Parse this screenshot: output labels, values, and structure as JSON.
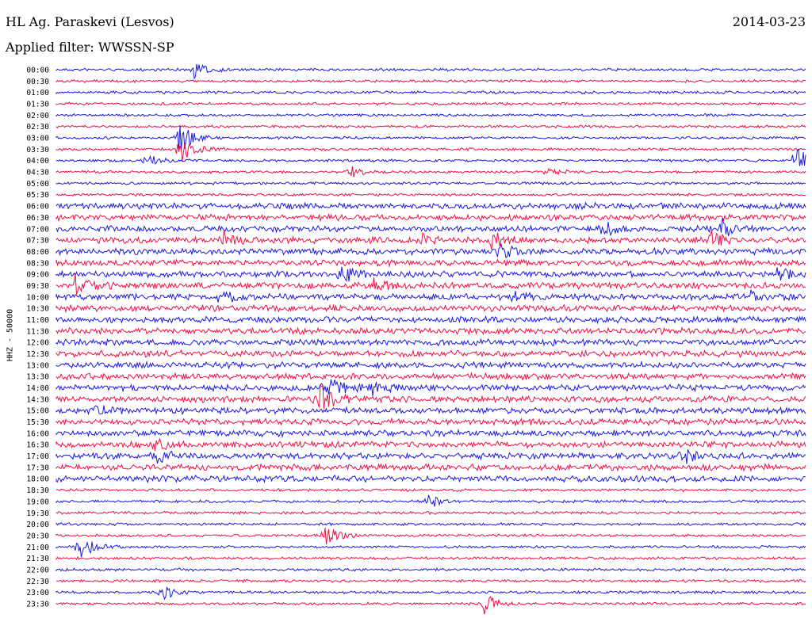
{
  "header": {
    "station": "HL Ag. Paraskevi (Lesvos)",
    "date": "2014-03-23",
    "filter_label": "Applied filter: WWSSN-SP"
  },
  "side_label": "HHZ - 50000",
  "chart_data": {
    "type": "line",
    "title": "HL Ag. Paraskevi (Lesvos)",
    "subtitle": "Applied filter: WWSSN-SP",
    "ylabel": "HHZ - 50000",
    "grid": false,
    "row_labels": [
      "00:00",
      "00:30",
      "01:00",
      "01:30",
      "02:00",
      "02:30",
      "03:00",
      "03:30",
      "04:00",
      "04:30",
      "05:00",
      "05:30",
      "06:00",
      "06:30",
      "07:00",
      "07:30",
      "08:00",
      "08:30",
      "09:00",
      "09:30",
      "10:00",
      "10:30",
      "11:00",
      "11:30",
      "12:00",
      "12:30",
      "13:00",
      "13:30",
      "14:00",
      "14:30",
      "15:00",
      "15:30",
      "16:00",
      "16:30",
      "17:00",
      "17:30",
      "18:00",
      "18:30",
      "19:00",
      "19:30",
      "20:00",
      "20:30",
      "21:00",
      "21:30",
      "22:00",
      "22:30",
      "23:00",
      "23:30"
    ],
    "colors": [
      "#1a1adc",
      "#ee1144"
    ]
  }
}
